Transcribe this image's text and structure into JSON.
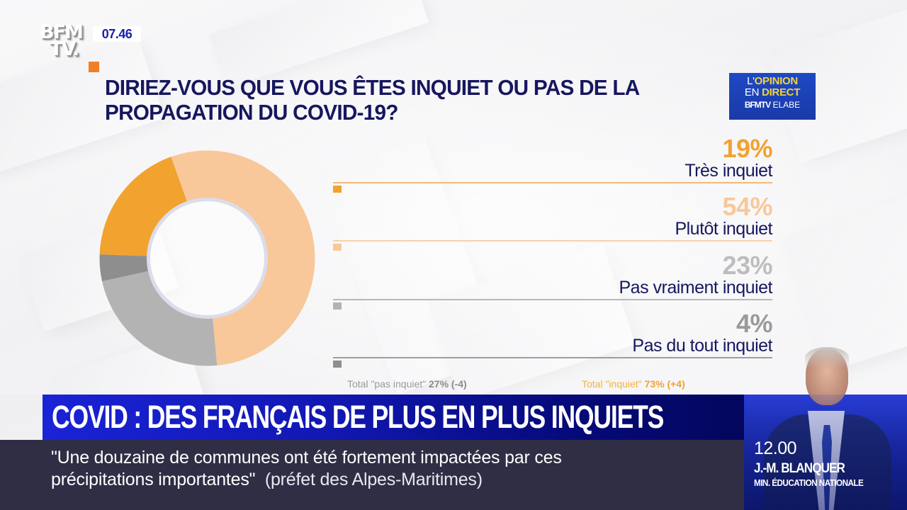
{
  "broadcast": {
    "channel_logo": {
      "line1": "BFM",
      "line2": "TV."
    },
    "clock": "07.46",
    "accent_color": "#f07f2a"
  },
  "poll": {
    "question": "DIRIEZ-VOUS QUE VOUS ÊTES INQUIET OU PAS DE LA PROPAGATION DU COVID-19?",
    "badge": {
      "line1_thin": "L'",
      "line1_bold": "OPINION",
      "line2_thin": "EN ",
      "line2_bold": "DIRECT",
      "line3_bold": "BFMTV",
      "line3_thin": " ELABE"
    },
    "totals": {
      "not_worried_label": "Total \"pas inquiet\" ",
      "not_worried_value": "27% (-4)",
      "worried_label": "Total \"inquiet\" ",
      "worried_value": "73% (+4)"
    }
  },
  "chart_data": {
    "type": "pie",
    "subtype": "donut",
    "title": "DIRIEZ-VOUS QUE VOUS ÊTES INQUIET OU PAS DE LA PROPAGATION DU COVID-19?",
    "categories": [
      "Très inquiet",
      "Plutôt inquiet",
      "Pas vraiment inquiet",
      "Pas du tout inquiet"
    ],
    "values": [
      19,
      54,
      23,
      4
    ],
    "labels": [
      "19%",
      "54%",
      "23%",
      "4%"
    ],
    "colors": [
      "#f2a22f",
      "#f8c89a",
      "#b3b3b3",
      "#8e8e8e"
    ],
    "start_angle_deg": -88,
    "legend_position": "right",
    "annotations": [
      "Total \"pas inquiet\" 27% (-4)",
      "Total \"inquiet\" 73% (+4)"
    ]
  },
  "lower_third": {
    "headline": "COVID : DES FRANÇAIS DE PLUS EN PLUS INQUIETS",
    "quote_line1": "\"Une douzaine de communes ont été fortement impactées par ces",
    "quote_line2": "précipitations importantes\"",
    "quote_source": "(préfet des Alpes-Maritimes)"
  },
  "upcoming_guest": {
    "time": "12.00",
    "name": "J.-M. BLANQUER",
    "role": "MIN. ÉDUCATION NATIONALE"
  }
}
